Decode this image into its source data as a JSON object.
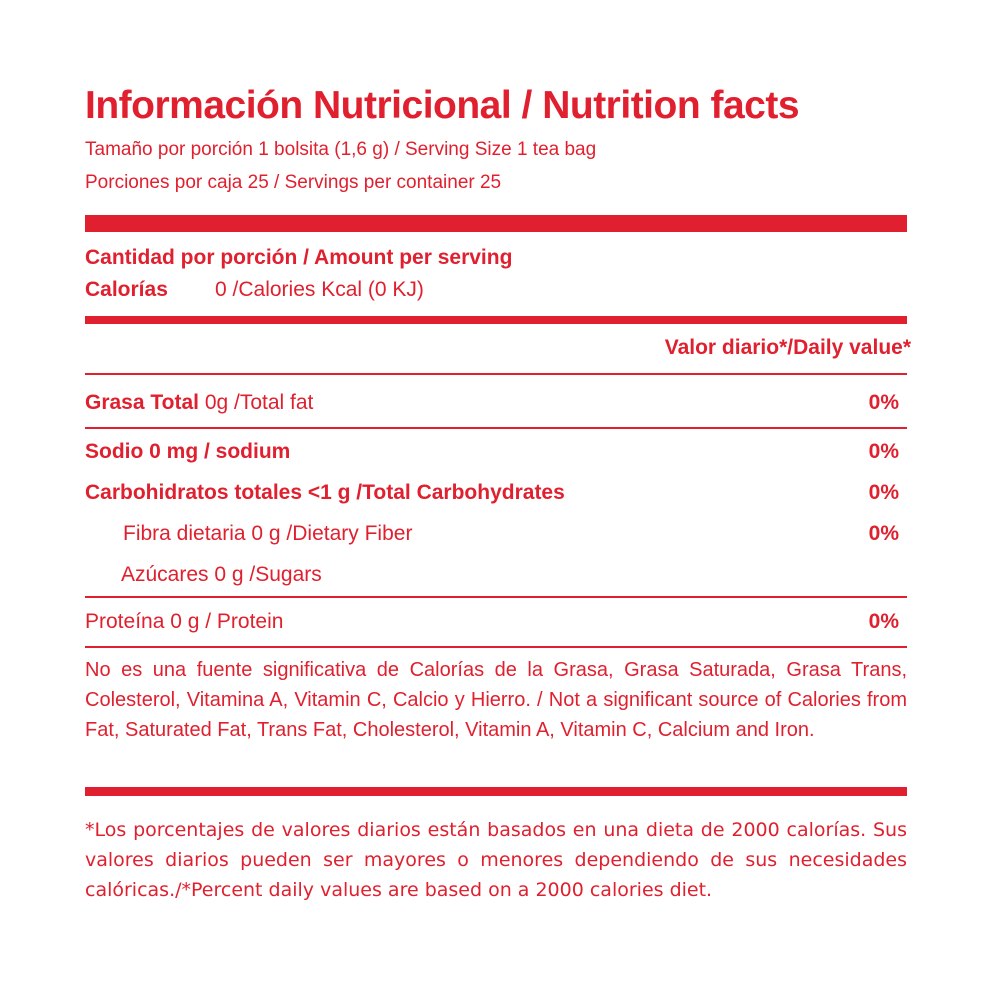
{
  "label": {
    "title": "Información Nutricional / Nutrition facts",
    "serving_size": "Tamaño por porción 1 bolsita (1,6 g) / Serving Size 1 tea bag",
    "servings_per_container": "Porciones por caja 25 / Servings per container 25",
    "amount_per_serving": "Cantidad por  porción / Amount per serving",
    "calories_label": "Calorías",
    "calories_value": "0 /Calories Kcal (0 KJ)",
    "daily_value_header": "Valor diario*/Daily value*",
    "nutrients": [
      {
        "label_bold": "Grasa Total",
        "label_rest": " 0g /Total fat",
        "percent": "0%"
      },
      {
        "label_bold": "Sodio 0 mg / sodium",
        "label_rest": "",
        "percent": "0%"
      },
      {
        "label_bold": "Carbohidratos totales  <1 g /Total Carbohydrates",
        "label_rest": "",
        "percent": "0%"
      },
      {
        "label_bold": "",
        "label_rest": "Fibra dietaria 0 g /Dietary Fiber",
        "percent": "0%"
      },
      {
        "label_bold": "",
        "label_rest": "Azúcares 0 g /Sugars",
        "percent": ""
      },
      {
        "label_bold": "",
        "label_rest": "Proteína  0 g / Protein",
        "percent": "0%"
      }
    ],
    "not_significant_note": "No es una fuente significativa de Calorías de la Grasa, Grasa Saturada, Grasa Trans, Colesterol, Vitamina A, Vitamin C, Calcio y Hierro. / Not a significant source of Calories from Fat, Saturated Fat, Trans Fat, Cholesterol, Vitamin A, Vitamin C, Calcium and Iron.",
    "footnote": "*Los porcentajes de valores diarios están basados en una dieta de 2000 calorías. Sus valores diarios pueden ser mayores o menores dependiendo de sus necesidades calóricas./*Percent daily values are based on a 2000 calories diet."
  },
  "colors": {
    "accent": "#e0202f",
    "background": "#ffffff"
  }
}
